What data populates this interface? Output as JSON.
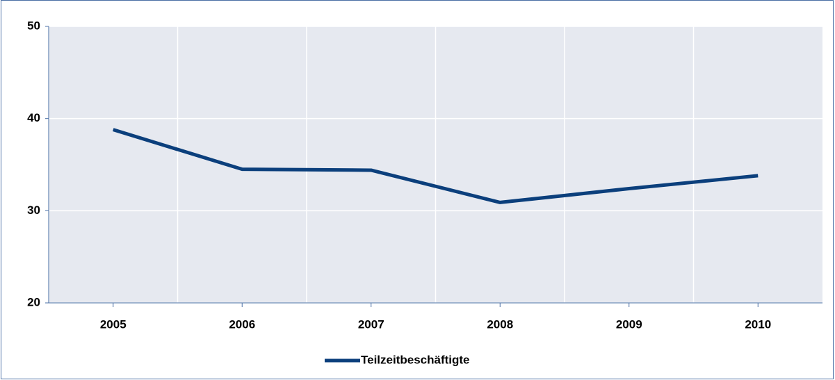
{
  "chart_data": {
    "type": "line",
    "categories": [
      "2005",
      "2006",
      "2007",
      "2008",
      "2009",
      "2010"
    ],
    "series": [
      {
        "name": "Teilzeitbeschäftigte",
        "color": "#0b3f7c",
        "values": [
          38.8,
          34.5,
          34.4,
          30.9,
          32.4,
          33.8
        ]
      }
    ],
    "ylim": [
      20,
      50
    ],
    "yticks": [
      20,
      30,
      40,
      50
    ],
    "grid": true,
    "legend": "bottom"
  }
}
